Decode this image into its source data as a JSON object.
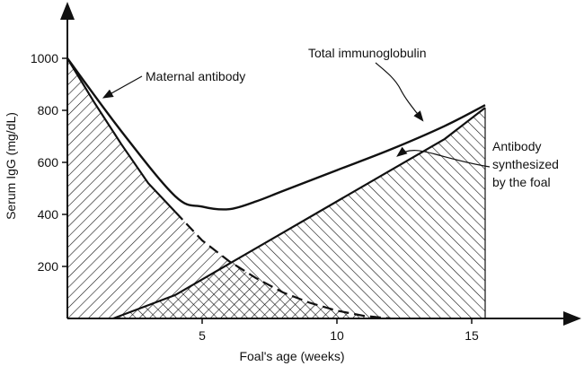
{
  "chart_data": {
    "type": "area",
    "xlabel": "Foal's age (weeks)",
    "ylabel": "Serum IgG (mg/dL)",
    "xlim": [
      0,
      19
    ],
    "ylim": [
      0,
      1150
    ],
    "xticks": [
      5,
      10,
      15
    ],
    "yticks": [
      200,
      400,
      600,
      800,
      1000
    ],
    "grid": false,
    "series": [
      {
        "name": "Maternal antibody",
        "style": "hatched-area",
        "hatch": "diagonal",
        "x": [
          0,
          1,
          2,
          3,
          4,
          5,
          6,
          7,
          8,
          9,
          10,
          11,
          12
        ],
        "y": [
          1000,
          830,
          670,
          520,
          410,
          300,
          220,
          155,
          100,
          60,
          30,
          10,
          0
        ]
      },
      {
        "name": "Antibody synthesized by the foal",
        "style": "hatched-area",
        "hatch": "diagonal",
        "x": [
          1.7,
          4,
          6,
          8,
          10,
          12,
          14,
          15.5
        ],
        "y": [
          0,
          90,
          210,
          330,
          450,
          570,
          690,
          810
        ]
      },
      {
        "name": "Total immunoglobulin",
        "style": "line",
        "x": [
          0,
          2,
          4,
          5,
          6,
          7,
          8,
          10,
          12,
          14,
          15.5
        ],
        "y": [
          1000,
          720,
          470,
          430,
          420,
          450,
          490,
          570,
          650,
          740,
          820
        ]
      }
    ],
    "annotations": [
      {
        "text": "Maternal antibody",
        "target": [
          1.3,
          850
        ]
      },
      {
        "text": "Total immunoglobulin",
        "target": [
          13,
          770
        ]
      },
      {
        "text": "Antibody\nsynthesized\nby the foal",
        "target": [
          12.2,
          640
        ]
      }
    ]
  }
}
